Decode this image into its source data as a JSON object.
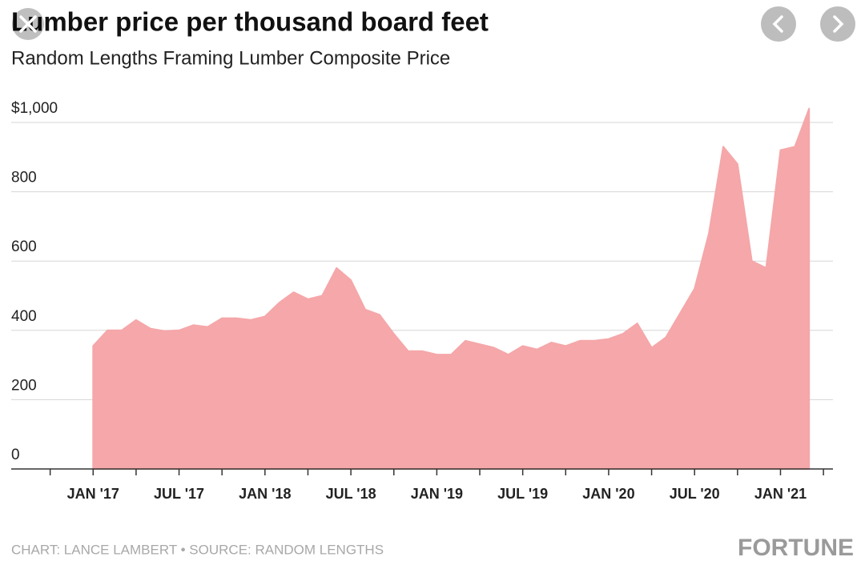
{
  "chart_data": {
    "type": "area",
    "title": "Lumber price per thousand board feet",
    "subtitle": "Random Lengths Framing Lumber Composite Price",
    "caption": "CHART: LANCE LAMBERT • SOURCE: RANDOM LENGTHS",
    "logo": "FORTUNE",
    "color": "#f5a7a9",
    "grid": true,
    "x": [
      "2017-01",
      "2017-02",
      "2017-03",
      "2017-04",
      "2017-05",
      "2017-06",
      "2017-07",
      "2017-08",
      "2017-09",
      "2017-10",
      "2017-11",
      "2017-12",
      "2018-01",
      "2018-02",
      "2018-03",
      "2018-04",
      "2018-05",
      "2018-06",
      "2018-07",
      "2018-08",
      "2018-09",
      "2018-10",
      "2018-11",
      "2018-12",
      "2019-01",
      "2019-02",
      "2019-03",
      "2019-04",
      "2019-05",
      "2019-06",
      "2019-07",
      "2019-08",
      "2019-09",
      "2019-10",
      "2019-11",
      "2019-12",
      "2020-01",
      "2020-02",
      "2020-03",
      "2020-04",
      "2020-05",
      "2020-06",
      "2020-07",
      "2020-08",
      "2020-09",
      "2020-10",
      "2020-11",
      "2020-12",
      "2021-01",
      "2021-02",
      "2021-03"
    ],
    "values": [
      355,
      400,
      400,
      430,
      405,
      398,
      400,
      415,
      410,
      435,
      435,
      430,
      440,
      480,
      510,
      490,
      500,
      580,
      545,
      460,
      445,
      390,
      340,
      340,
      330,
      330,
      370,
      360,
      350,
      330,
      355,
      345,
      365,
      355,
      370,
      370,
      375,
      390,
      420,
      350,
      380,
      450,
      520,
      680,
      930,
      880,
      600,
      580,
      920,
      930,
      1040
    ],
    "xlim": [
      "2016-07",
      "2021-05"
    ],
    "xticks": [
      {
        "value": "2017-01",
        "label": "JAN '17"
      },
      {
        "value": "2017-07",
        "label": "JUL '17"
      },
      {
        "value": "2018-01",
        "label": "JAN '18"
      },
      {
        "value": "2018-07",
        "label": "JUL '18"
      },
      {
        "value": "2019-01",
        "label": "JAN '19"
      },
      {
        "value": "2019-07",
        "label": "JUL '19"
      },
      {
        "value": "2020-01",
        "label": "JAN '20"
      },
      {
        "value": "2020-07",
        "label": "JUL '20"
      },
      {
        "value": "2021-01",
        "label": "JAN '21"
      }
    ],
    "ylim": [
      0,
      1000
    ],
    "yticks": [
      0,
      200,
      400,
      600,
      800,
      {
        "value": 1000,
        "label": "$1,000"
      }
    ]
  }
}
